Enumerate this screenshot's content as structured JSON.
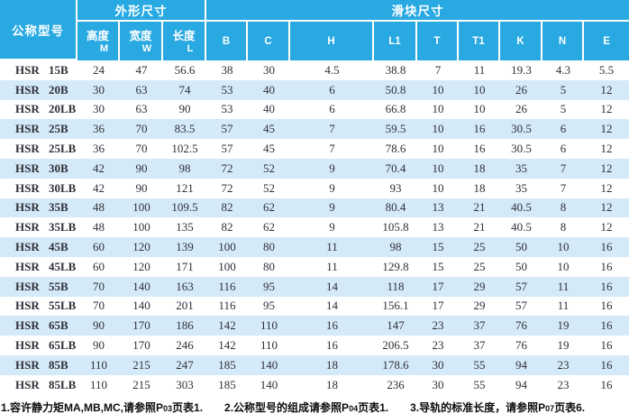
{
  "colors": {
    "header_bg": "#29a9e1",
    "stripe_bg": "#d4eaf8",
    "data_text": "#2f2f38",
    "header_text": "#ffffff"
  },
  "table": {
    "header": {
      "model_col": "公称型号",
      "group_outer": "外形尺寸",
      "group_slider": "滑块尺寸",
      "outer_subcols": [
        {
          "label": "高度",
          "letter": "M"
        },
        {
          "label": "宽度",
          "letter": "W"
        },
        {
          "label": "长度",
          "letter": "L"
        }
      ],
      "slider_subcols": [
        "B",
        "C",
        "H",
        "L1",
        "T",
        "T1",
        "K",
        "N",
        "E"
      ]
    },
    "rows": [
      {
        "model": "HSR 15B",
        "values": [
          "24",
          "47",
          "56.6",
          "38",
          "30",
          "4.5",
          "38.8",
          "7",
          "11",
          "19.3",
          "4.3",
          "5.5"
        ]
      },
      {
        "model": "HSR 20B",
        "values": [
          "30",
          "63",
          "74",
          "53",
          "40",
          "6",
          "50.8",
          "10",
          "10",
          "26",
          "5",
          "12"
        ]
      },
      {
        "model": "HSR 20LB",
        "values": [
          "30",
          "63",
          "90",
          "53",
          "40",
          "6",
          "66.8",
          "10",
          "10",
          "26",
          "5",
          "12"
        ]
      },
      {
        "model": "HSR 25B",
        "values": [
          "36",
          "70",
          "83.5",
          "57",
          "45",
          "7",
          "59.5",
          "10",
          "16",
          "30.5",
          "6",
          "12"
        ]
      },
      {
        "model": "HSR 25LB",
        "values": [
          "36",
          "70",
          "102.5",
          "57",
          "45",
          "7",
          "78.6",
          "10",
          "16",
          "30.5",
          "6",
          "12"
        ]
      },
      {
        "model": "HSR 30B",
        "values": [
          "42",
          "90",
          "98",
          "72",
          "52",
          "9",
          "70.4",
          "10",
          "18",
          "35",
          "7",
          "12"
        ]
      },
      {
        "model": "HSR 30LB",
        "values": [
          "42",
          "90",
          "121",
          "72",
          "52",
          "9",
          "93",
          "10",
          "18",
          "35",
          "7",
          "12"
        ]
      },
      {
        "model": "HSR 35B",
        "values": [
          "48",
          "100",
          "109.5",
          "82",
          "62",
          "9",
          "80.4",
          "13",
          "21",
          "40.5",
          "8",
          "12"
        ]
      },
      {
        "model": "HSR 35LB",
        "values": [
          "48",
          "100",
          "135",
          "82",
          "62",
          "9",
          "105.8",
          "13",
          "21",
          "40.5",
          "8",
          "12"
        ]
      },
      {
        "model": "HSR 45B",
        "values": [
          "60",
          "120",
          "139",
          "100",
          "80",
          "11",
          "98",
          "15",
          "25",
          "50",
          "10",
          "16"
        ]
      },
      {
        "model": "HSR 45LB",
        "values": [
          "60",
          "120",
          "171",
          "100",
          "80",
          "11",
          "129.8",
          "15",
          "25",
          "50",
          "10",
          "16"
        ]
      },
      {
        "model": "HSR 55B",
        "values": [
          "70",
          "140",
          "163",
          "116",
          "95",
          "14",
          "118",
          "17",
          "29",
          "57",
          "11",
          "16"
        ]
      },
      {
        "model": "HSR 55LB",
        "values": [
          "70",
          "140",
          "201",
          "116",
          "95",
          "14",
          "156.1",
          "17",
          "29",
          "57",
          "11",
          "16"
        ]
      },
      {
        "model": "HSR 65B",
        "values": [
          "90",
          "170",
          "186",
          "142",
          "110",
          "16",
          "147",
          "23",
          "37",
          "76",
          "19",
          "16"
        ]
      },
      {
        "model": "HSR 65LB",
        "values": [
          "90",
          "170",
          "246",
          "142",
          "110",
          "16",
          "206.5",
          "23",
          "37",
          "76",
          "19",
          "16"
        ]
      },
      {
        "model": "HSR 85B",
        "values": [
          "110",
          "215",
          "247",
          "185",
          "140",
          "18",
          "178.6",
          "30",
          "55",
          "94",
          "23",
          "16"
        ]
      },
      {
        "model": "HSR 85LB",
        "values": [
          "110",
          "215",
          "303",
          "185",
          "140",
          "18",
          "236",
          "30",
          "55",
          "94",
          "23",
          "16"
        ]
      }
    ]
  },
  "footer": {
    "notes": [
      {
        "pre": "1.容许静力矩MA,MB,MC,请参照P",
        "page": "03",
        "post": "页表1."
      },
      {
        "pre": "2.公称型号的组成请参照P",
        "page": "04",
        "post": "页表1."
      },
      {
        "pre": "3.导轨的标准长度，请参照P",
        "page": "07",
        "post": "页表6."
      }
    ]
  }
}
